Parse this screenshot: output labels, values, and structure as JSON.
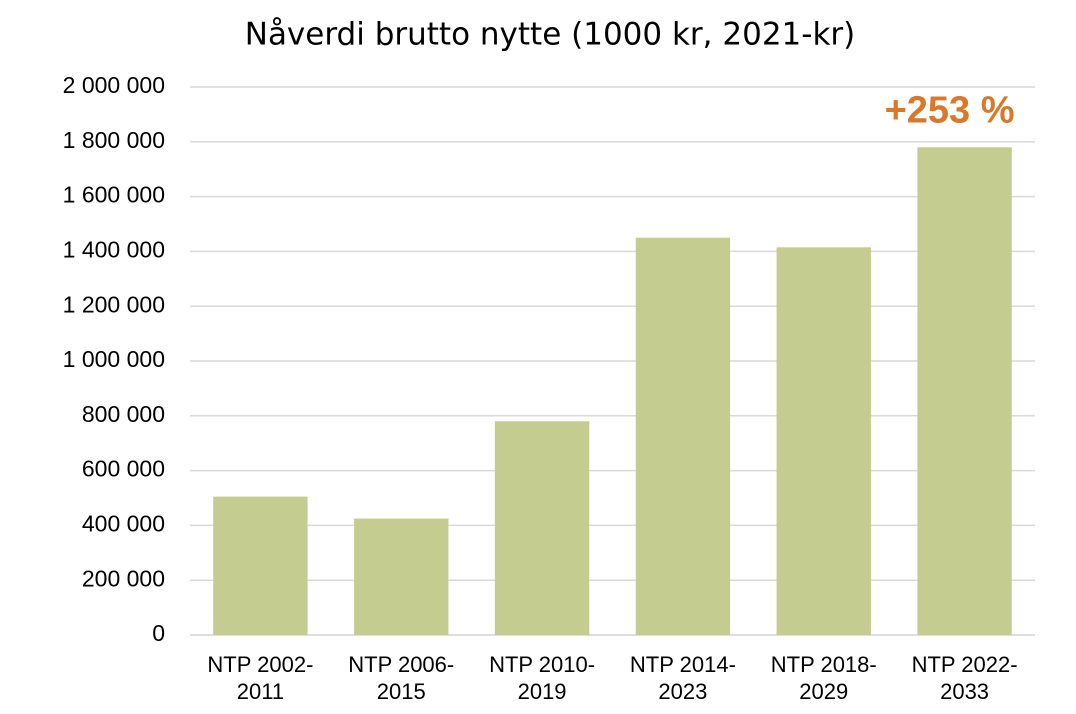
{
  "chart_data": {
    "type": "bar",
    "title": "Nåverdi brutto nytte (1000 kr, 2021-kr)",
    "categories": [
      "NTP 2002-2011",
      "NTP 2006-2015",
      "NTP 2010-2019",
      "NTP 2014-2023",
      "NTP 2018-2029",
      "NTP 2022-2033"
    ],
    "values": [
      505000,
      425000,
      780000,
      1450000,
      1415000,
      1780000
    ],
    "color": "#c5cc8f",
    "ylim": [
      0,
      2000000
    ],
    "yticks": [
      0,
      {
        "value": 200000,
        "label": "200 000"
      },
      {
        "value": 400000,
        "label": "400 000"
      },
      {
        "value": 600000,
        "label": "600 000"
      },
      {
        "value": 800000,
        "label": "800 000"
      },
      {
        "value": 1000000,
        "label": "1 000 000"
      },
      {
        "value": 1200000,
        "label": "1 200 000"
      },
      {
        "value": 1400000,
        "label": "1 400 000"
      },
      {
        "value": 1600000,
        "label": "1 600 000"
      },
      {
        "value": 1800000,
        "label": "1 800 000"
      },
      {
        "value": 2000000,
        "label": "2 000 000"
      }
    ],
    "grid": true,
    "annotation": {
      "text": "+253 %",
      "color": "#d9782a"
    }
  }
}
